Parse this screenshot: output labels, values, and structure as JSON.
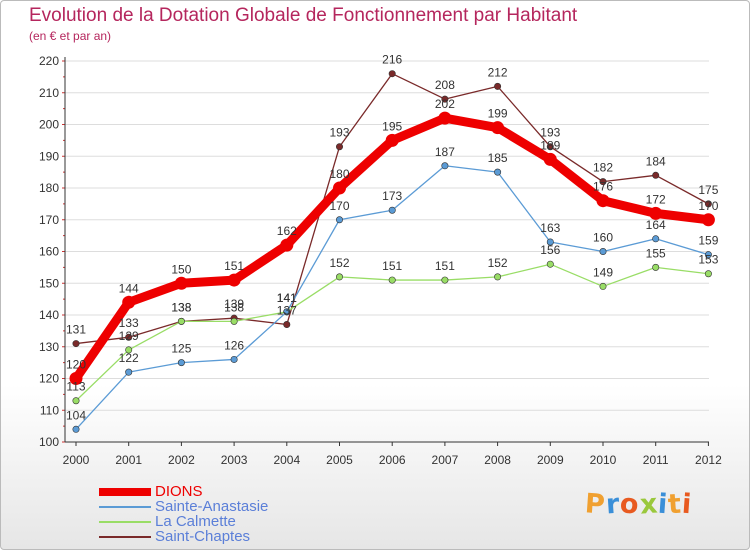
{
  "title": "Evolution de la Dotation Globale de Fonctionnement par Habitant",
  "subtitle": "(en € et par an)",
  "logo": {
    "text": "Proxiti",
    "colors": [
      "#f0a030",
      "#3a8fd8",
      "#e85a20",
      "#9ac83c",
      "#3a8fd8",
      "#f0a030",
      "#e85a20"
    ]
  },
  "chart_data": {
    "type": "line",
    "title": "Evolution de la Dotation Globale de Fonctionnement par Habitant",
    "subtitle": "(en € et par an)",
    "x": [
      "2000",
      "2001",
      "2002",
      "2003",
      "2004",
      "2005",
      "2006",
      "2007",
      "2008",
      "2009",
      "2010",
      "2011",
      "2012"
    ],
    "yticks": [
      "100",
      "110",
      "120",
      "130",
      "140",
      "150",
      "160",
      "170",
      "180",
      "190",
      "200",
      "210",
      "220"
    ],
    "ylim": [
      100,
      220
    ],
    "grid": "horizontal",
    "legend_position": "bottom-left",
    "series": [
      {
        "name": "DIONS",
        "color": "#ee0000",
        "values": [
          120,
          144,
          150,
          151,
          162,
          180,
          195,
          202,
          199,
          189,
          176,
          172,
          170
        ],
        "labels": [
          "120",
          "144",
          "150",
          "151",
          "162",
          "180",
          "195",
          "202",
          "199",
          "189",
          "176",
          "172",
          "170"
        ]
      },
      {
        "name": "Sainte-Anastasie",
        "color": "#5b9bd5",
        "values": [
          104,
          122,
          125,
          126,
          141,
          170,
          173,
          187,
          185,
          163,
          160,
          164,
          159
        ],
        "labels": [
          "104",
          "122",
          "125",
          "126",
          "141",
          "170",
          "173",
          "187",
          "185",
          "163",
          "160",
          "164",
          "159"
        ]
      },
      {
        "name": "La Calmette",
        "color": "#99dd66",
        "values": [
          113,
          129,
          138,
          138,
          141,
          152,
          151,
          151,
          152,
          156,
          149,
          155,
          153
        ],
        "labels": [
          "113",
          "129",
          "138",
          "138",
          "141",
          "152",
          "151",
          "151",
          "152",
          "156",
          "149",
          "155",
          "153"
        ]
      },
      {
        "name": "Saint-Chaptes",
        "color": "#7a2a2a",
        "values": [
          131,
          133,
          138,
          139,
          137,
          193,
          216,
          208,
          212,
          193,
          182,
          184,
          175
        ],
        "labels": [
          "131",
          "133",
          "138",
          "139",
          "137",
          "193",
          "216",
          "208",
          "212",
          "193",
          "182",
          "184",
          "175"
        ]
      }
    ]
  }
}
